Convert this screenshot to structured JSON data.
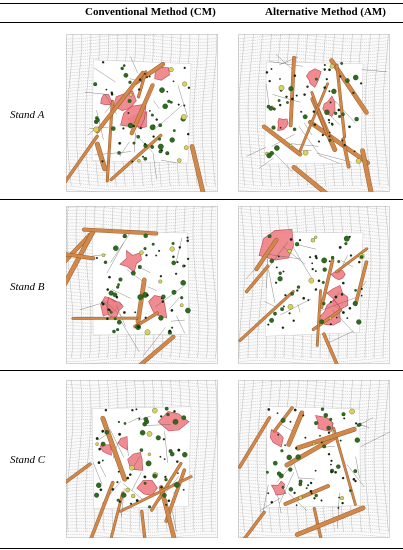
{
  "columns": [
    {
      "label": "Conventional Method (CM)"
    },
    {
      "label": "Alternative Method (AM)"
    }
  ],
  "rows": [
    {
      "label": "Stand A"
    },
    {
      "label": "Stand B"
    },
    {
      "label": "Stand C"
    }
  ],
  "colors": {
    "log_fill": "#d2884a",
    "log_edge": "#8a4f1e",
    "patch_fill": "#ef7f86",
    "patch_edge": "#b23a44",
    "grid_line": "#8c8c8c",
    "tree_green": "#2f6b1f",
    "tree_dark": "#0f2a0a",
    "tree_yellow": "#d8d25a",
    "background": "#ffffff"
  }
}
